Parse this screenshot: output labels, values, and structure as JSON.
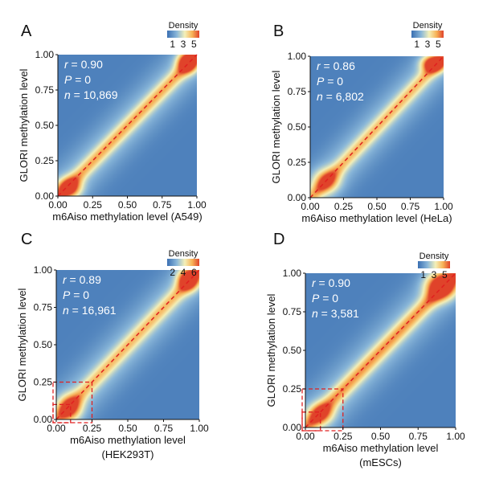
{
  "colors": {
    "low": "#3a6fb2",
    "mid_low": "#8ab7d9",
    "mid": "#f4f0b8",
    "mid_high": "#f7b257",
    "high": "#e0432a",
    "diagonal": "#e02020",
    "stat_text": "#ffffff"
  },
  "chart_data": [
    {
      "type": "heatmap",
      "panel_label": "A",
      "xlabel": "m6Aiso methylation level (A549)",
      "xlabel2": "",
      "ylabel": "GLORI methylation level",
      "xlim": [
        0,
        1
      ],
      "ylim": [
        0,
        1
      ],
      "xticks": [
        "0.00",
        "0.25",
        "0.50",
        "0.75",
        "1.00"
      ],
      "yticks": [
        "0.00",
        "0.25",
        "0.50",
        "0.75",
        "1.00"
      ],
      "legend": {
        "title": "Density",
        "ticks": [
          1,
          3,
          5
        ],
        "range": [
          0,
          6
        ]
      },
      "stats": {
        "r": "0.90",
        "P": "0",
        "n": "10,869"
      },
      "dense_spots": [
        {
          "x": 0.93,
          "y": 0.95,
          "sx": 0.05,
          "sy": 0.05,
          "w": 1.0
        },
        {
          "x": 0.08,
          "y": 0.06,
          "sx": 0.06,
          "sy": 0.05,
          "w": 0.75
        }
      ],
      "band_strength": 0.45,
      "highlight_boxes": []
    },
    {
      "type": "heatmap",
      "panel_label": "B",
      "xlabel": "m6Aiso methylation level (HeLa)",
      "xlabel2": "",
      "ylabel": "GLORI methylation level",
      "xlim": [
        0,
        1
      ],
      "ylim": [
        0,
        1
      ],
      "xticks": [
        "0.00",
        "0.25",
        "0.50",
        "0.75",
        "1.00"
      ],
      "yticks": [
        "0.00",
        "0.25",
        "0.50",
        "0.75",
        "1.00"
      ],
      "legend": {
        "title": "Density",
        "ticks": [
          1,
          3,
          5
        ],
        "range": [
          0,
          6
        ]
      },
      "stats": {
        "r": "0.86",
        "P": "0",
        "n": "6,802"
      },
      "dense_spots": [
        {
          "x": 0.92,
          "y": 0.95,
          "sx": 0.06,
          "sy": 0.04,
          "w": 1.0
        },
        {
          "x": 0.12,
          "y": 0.12,
          "sx": 0.07,
          "sy": 0.06,
          "w": 0.55
        }
      ],
      "band_strength": 0.4,
      "highlight_boxes": []
    },
    {
      "type": "heatmap",
      "panel_label": "C",
      "xlabel": "m6Aiso methylation level",
      "xlabel2": "(HEK293T)",
      "ylabel": "GLORI methylation level",
      "xlim": [
        0,
        1
      ],
      "ylim": [
        0,
        1
      ],
      "xticks": [
        "0.00",
        "0.25",
        "0.50",
        "0.75",
        "1.00"
      ],
      "yticks": [
        "0.00",
        "0.25",
        "0.50",
        "0.75",
        "1.00"
      ],
      "legend": {
        "title": "Density",
        "ticks": [
          2,
          4,
          6
        ],
        "range": [
          1,
          7
        ]
      },
      "stats": {
        "r": "0.89",
        "P": "0",
        "n": "16,961"
      },
      "dense_spots": [
        {
          "x": 0.92,
          "y": 0.94,
          "sx": 0.05,
          "sy": 0.05,
          "w": 1.0
        },
        {
          "x": 0.09,
          "y": 0.08,
          "sx": 0.06,
          "sy": 0.06,
          "w": 0.7
        }
      ],
      "band_strength": 0.4,
      "highlight_boxes": [
        0.25,
        0.1
      ]
    },
    {
      "type": "heatmap",
      "panel_label": "D",
      "xlabel": "m6Aiso methylation level",
      "xlabel2": "(mESCs)",
      "ylabel": "GLORI methylation level",
      "xlim": [
        0,
        1
      ],
      "ylim": [
        0,
        1
      ],
      "xticks": [
        "0.00",
        "0.25",
        "0.50",
        "0.75",
        "1.00"
      ],
      "yticks": [
        "0.00",
        "0.25",
        "0.50",
        "0.75",
        "1.00"
      ],
      "legend": {
        "title": "Density",
        "ticks": [
          1,
          3,
          5
        ],
        "range": [
          0,
          6
        ]
      },
      "stats": {
        "r": "0.90",
        "P": "0",
        "n": "3,581"
      },
      "dense_spots": [
        {
          "x": 0.9,
          "y": 0.92,
          "sx": 0.07,
          "sy": 0.06,
          "w": 1.0
        },
        {
          "x": 0.1,
          "y": 0.09,
          "sx": 0.06,
          "sy": 0.05,
          "w": 0.55
        }
      ],
      "band_strength": 0.5,
      "highlight_boxes": [
        0.25,
        0.1
      ]
    }
  ]
}
